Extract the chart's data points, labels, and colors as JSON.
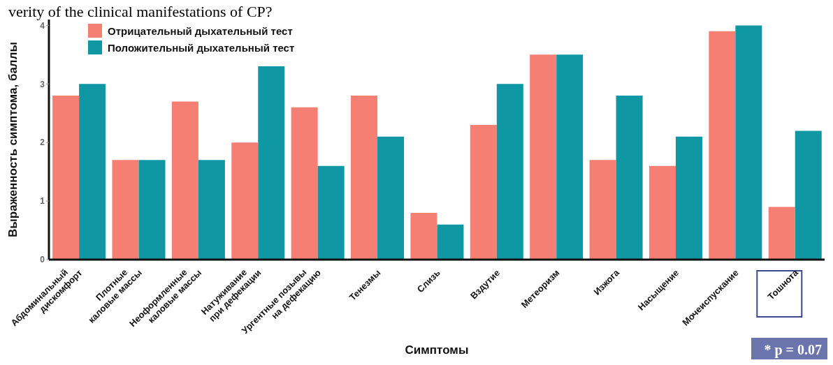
{
  "chart_data": {
    "type": "bar",
    "title": "verity of the clinical manifestations of CP?",
    "xlabel": "Симптомы",
    "ylabel": "Выраженность симптома, баллы",
    "categories": [
      "Абдоминальный\nдискомфорт",
      "Плотные\nкаловые массы",
      "Неоформленные\nкаловые массы",
      "Натуживание\nпри дефекации",
      "Ургентные позывы\nна дефекацию",
      "Тенезмы",
      "Слизь",
      "Вздутие",
      "Метеоризм",
      "Изжога",
      "Насыщение",
      "Мочеиспускание",
      "Тошнота"
    ],
    "series": [
      {
        "name": "Отрицательный дыхательный тест",
        "color": "#f47f72",
        "values": [
          2.8,
          1.7,
          2.7,
          2.0,
          2.6,
          2.8,
          0.8,
          2.3,
          3.5,
          1.7,
          1.6,
          3.9,
          0.9
        ]
      },
      {
        "name": "Положительный дыхательный тест",
        "color": "#0f97a3",
        "values": [
          3.0,
          1.7,
          1.7,
          3.3,
          1.6,
          2.1,
          0.6,
          3.0,
          3.5,
          2.8,
          2.1,
          4.0,
          2.2
        ]
      }
    ],
    "ylim": [
      0,
      4.1
    ],
    "yticks": [
      0,
      1,
      2,
      3,
      4
    ],
    "legend": "top left",
    "annotations": [
      "* p = 0.07"
    ]
  }
}
